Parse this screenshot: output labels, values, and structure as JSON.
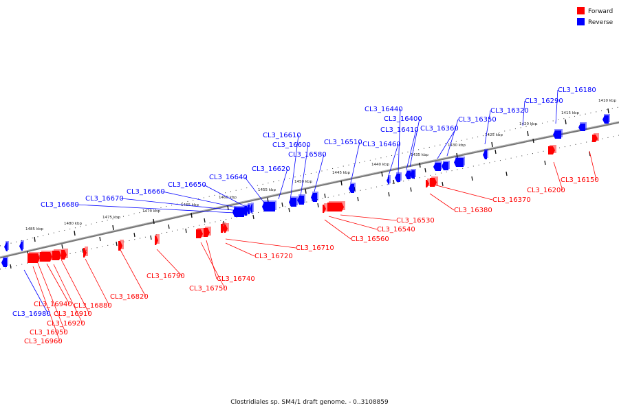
{
  "legend": {
    "forward_label": "Forward",
    "reverse_label": "Reverse",
    "forward_color": "#ff0000",
    "reverse_color": "#0000ff"
  },
  "caption": "Clostridiales sp. SM4/1 draft genome. - 0..3108859",
  "track_colors": {
    "backbone": "#777777",
    "tick": "#111111",
    "leader_forward": "#ff0000",
    "leader_reverse": "#0000ff"
  },
  "scale_ticks": [
    "1410 kbp",
    "1415 kbp",
    "1420 kbp",
    "1425 kbp",
    "1430 kbp",
    "1435 kbp",
    "1440 kbp",
    "1445 kbp",
    "1450 kbp",
    "1455 kbp",
    "1460 kbp",
    "1465 kbp",
    "1470 kbp",
    "1475 kbp",
    "1480 kbp",
    "1485 kbp"
  ],
  "genes": [
    {
      "label": "CL3_16150",
      "strand": "forward"
    },
    {
      "label": "CL3_16180",
      "strand": "reverse"
    },
    {
      "label": "CL3_16200",
      "strand": "forward"
    },
    {
      "label": "CL3_16290",
      "strand": "reverse"
    },
    {
      "label": "CL3_16320",
      "strand": "reverse"
    },
    {
      "label": "CL3_16350",
      "strand": "reverse"
    },
    {
      "label": "CL3_16360",
      "strand": "reverse"
    },
    {
      "label": "CL3_16370",
      "strand": "forward"
    },
    {
      "label": "CL3_16380",
      "strand": "forward"
    },
    {
      "label": "CL3_16400",
      "strand": "reverse"
    },
    {
      "label": "CL3_16410",
      "strand": "reverse"
    },
    {
      "label": "CL3_16440",
      "strand": "reverse"
    },
    {
      "label": "CL3_16460",
      "strand": "reverse"
    },
    {
      "label": "CL3_16510",
      "strand": "reverse"
    },
    {
      "label": "CL3_16530",
      "strand": "forward"
    },
    {
      "label": "CL3_16540",
      "strand": "forward"
    },
    {
      "label": "CL3_16560",
      "strand": "forward"
    },
    {
      "label": "CL3_16580",
      "strand": "reverse"
    },
    {
      "label": "CL3_16600",
      "strand": "reverse"
    },
    {
      "label": "CL3_16610",
      "strand": "reverse"
    },
    {
      "label": "CL3_16620",
      "strand": "reverse"
    },
    {
      "label": "CL3_16640",
      "strand": "reverse"
    },
    {
      "label": "CL3_16650",
      "strand": "reverse"
    },
    {
      "label": "CL3_16660",
      "strand": "reverse"
    },
    {
      "label": "CL3_16670",
      "strand": "reverse"
    },
    {
      "label": "CL3_16680",
      "strand": "reverse"
    },
    {
      "label": "CL3_16710",
      "strand": "forward"
    },
    {
      "label": "CL3_16720",
      "strand": "forward"
    },
    {
      "label": "CL3_16740",
      "strand": "forward"
    },
    {
      "label": "CL3_16750",
      "strand": "forward"
    },
    {
      "label": "CL3_16790",
      "strand": "forward"
    },
    {
      "label": "CL3_16820",
      "strand": "forward"
    },
    {
      "label": "CL3_16880",
      "strand": "forward"
    },
    {
      "label": "CL3_16910",
      "strand": "forward"
    },
    {
      "label": "CL3_16920",
      "strand": "forward"
    },
    {
      "label": "CL3_16940",
      "strand": "forward"
    },
    {
      "label": "CL3_16950",
      "strand": "forward"
    },
    {
      "label": "CL3_16960",
      "strand": "forward"
    },
    {
      "label": "CL3_16980",
      "strand": "reverse"
    }
  ]
}
